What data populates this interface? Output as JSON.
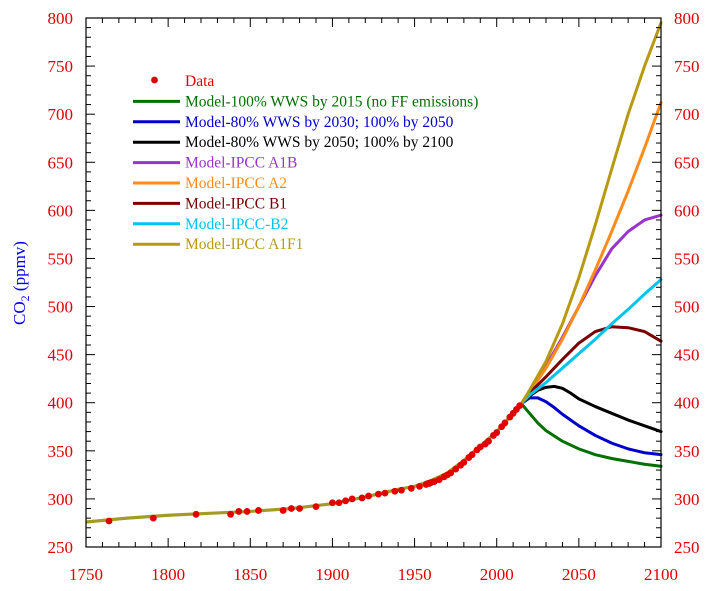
{
  "chart_data": {
    "type": "line",
    "title": "",
    "xlabel": "",
    "ylabel": "CO",
    "ylabel_subscript": "2",
    "ylabel_units": " (ppmv)",
    "xlim": [
      1750,
      2100
    ],
    "ylim": [
      250,
      800
    ],
    "xticks": [
      1750,
      1800,
      1850,
      1900,
      1950,
      2000,
      2050,
      2100
    ],
    "yticks": [
      250,
      300,
      350,
      400,
      450,
      500,
      550,
      600,
      650,
      700,
      750,
      800
    ],
    "tick_label_color": "#e00000",
    "ylabel_color": "#0000ee",
    "legend_position": "upper-left",
    "data": {
      "name": "Data",
      "color": "#e00000",
      "points": [
        [
          1764,
          277
        ],
        [
          1791,
          280
        ],
        [
          1817,
          284
        ],
        [
          1838,
          284
        ],
        [
          1843,
          287
        ],
        [
          1848,
          287
        ],
        [
          1855,
          288
        ],
        [
          1870,
          288
        ],
        [
          1875,
          290
        ],
        [
          1880,
          290
        ],
        [
          1890,
          292
        ],
        [
          1900,
          296
        ],
        [
          1904,
          296
        ],
        [
          1908,
          298
        ],
        [
          1912,
          300
        ],
        [
          1918,
          301
        ],
        [
          1922,
          303
        ],
        [
          1928,
          305
        ],
        [
          1932,
          306
        ],
        [
          1938,
          308
        ],
        [
          1942,
          309
        ],
        [
          1948,
          311
        ],
        [
          1953,
          313
        ],
        [
          1957,
          315
        ],
        [
          1958,
          316
        ],
        [
          1959,
          316
        ],
        [
          1960,
          317
        ],
        [
          1962,
          318
        ],
        [
          1965,
          320
        ],
        [
          1968,
          323
        ],
        [
          1970,
          325
        ],
        [
          1972,
          327
        ],
        [
          1975,
          331
        ],
        [
          1978,
          335
        ],
        [
          1980,
          338
        ],
        [
          1983,
          343
        ],
        [
          1985,
          346
        ],
        [
          1988,
          351
        ],
        [
          1990,
          354
        ],
        [
          1993,
          357
        ],
        [
          1995,
          360
        ],
        [
          1998,
          366
        ],
        [
          2000,
          369
        ],
        [
          2003,
          375
        ],
        [
          2005,
          379
        ],
        [
          2008,
          385
        ],
        [
          2010,
          389
        ],
        [
          2012,
          393
        ],
        [
          2014,
          397
        ]
      ]
    },
    "history": {
      "color": "#a39c24",
      "x": [
        1750,
        1775,
        1800,
        1825,
        1850,
        1875,
        1900,
        1920,
        1940,
        1950,
        1960,
        1970,
        1980,
        1990,
        2000,
        2010,
        2015
      ],
      "y": [
        276,
        280,
        283,
        285,
        287,
        290,
        295,
        302,
        310,
        313,
        319,
        327,
        340,
        355,
        370,
        389,
        399
      ]
    },
    "series": [
      {
        "name": "Model-100% WWS by 2015 (no FF emissions)",
        "color": "#007000",
        "x": [
          2015,
          2020,
          2025,
          2030,
          2040,
          2050,
          2060,
          2070,
          2080,
          2090,
          2100
        ],
        "y": [
          399,
          389,
          379,
          371,
          360,
          352,
          346,
          342,
          339,
          336,
          334
        ]
      },
      {
        "name": "Model-80% WWS by 2030; 100% by 2050",
        "color": "#0000cc",
        "x": [
          2015,
          2020,
          2025,
          2030,
          2035,
          2040,
          2050,
          2060,
          2070,
          2080,
          2090,
          2100
        ],
        "y": [
          399,
          405,
          405,
          401,
          395,
          388,
          376,
          366,
          358,
          352,
          348,
          346
        ]
      },
      {
        "name": "Model-80% WWS by 2050; 100% by 2100",
        "color": "#000000",
        "x": [
          2015,
          2020,
          2025,
          2030,
          2035,
          2040,
          2045,
          2050,
          2060,
          2070,
          2080,
          2090,
          2100
        ],
        "y": [
          399,
          407,
          413,
          416,
          417,
          415,
          410,
          404,
          396,
          389,
          382,
          376,
          370
        ]
      },
      {
        "name": "Model-IPCC A1B",
        "color": "#9933cc",
        "x": [
          2015,
          2020,
          2030,
          2040,
          2050,
          2060,
          2070,
          2080,
          2090,
          2100
        ],
        "y": [
          399,
          412,
          438,
          468,
          500,
          532,
          560,
          578,
          590,
          595
        ]
      },
      {
        "name": "Model-IPCC A2",
        "color": "#ff8c1a",
        "x": [
          2015,
          2020,
          2030,
          2040,
          2050,
          2060,
          2070,
          2080,
          2090,
          2100
        ],
        "y": [
          399,
          411,
          436,
          466,
          500,
          538,
          578,
          620,
          665,
          712
        ]
      },
      {
        "name": "Model-IPCC B1",
        "color": "#7a0000",
        "x": [
          2015,
          2020,
          2030,
          2040,
          2050,
          2060,
          2070,
          2080,
          2090,
          2100
        ],
        "y": [
          399,
          410,
          427,
          445,
          462,
          474,
          479,
          478,
          474,
          464
        ]
      },
      {
        "name": "Model-IPCC-B2",
        "color": "#00c4ee",
        "x": [
          2015,
          2020,
          2030,
          2040,
          2050,
          2060,
          2070,
          2080,
          2090,
          2100
        ],
        "y": [
          399,
          408,
          421,
          436,
          451,
          466,
          482,
          497,
          513,
          528
        ]
      },
      {
        "name": "Model-IPCC A1F1",
        "color": "#b89a12",
        "x": [
          2015,
          2020,
          2030,
          2040,
          2050,
          2060,
          2070,
          2080,
          2090,
          2100
        ],
        "y": [
          399,
          413,
          443,
          482,
          530,
          585,
          643,
          700,
          750,
          795
        ]
      }
    ]
  }
}
